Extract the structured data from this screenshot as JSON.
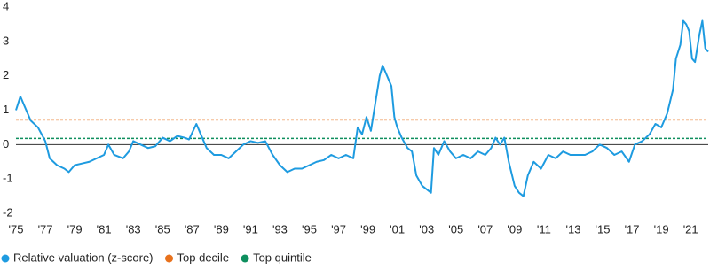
{
  "chart_data": {
    "type": "line",
    "xlim": [
      1975,
      2022.2
    ],
    "ylim": [
      -2,
      4
    ],
    "yticks": [
      -2,
      -1,
      0,
      1,
      2,
      3,
      4
    ],
    "xticks": [
      {
        "value": 1975,
        "label": "'75"
      },
      {
        "value": 1977,
        "label": "'77"
      },
      {
        "value": 1979,
        "label": "'79"
      },
      {
        "value": 1981,
        "label": "'81"
      },
      {
        "value": 1983,
        "label": "'83"
      },
      {
        "value": 1985,
        "label": "'85"
      },
      {
        "value": 1987,
        "label": "'87"
      },
      {
        "value": 1989,
        "label": "'89"
      },
      {
        "value": 1991,
        "label": "'91"
      },
      {
        "value": 1993,
        "label": "'93"
      },
      {
        "value": 1995,
        "label": "'95"
      },
      {
        "value": 1997,
        "label": "'97"
      },
      {
        "value": 1999,
        "label": "'99"
      },
      {
        "value": 2001,
        "label": "'01"
      },
      {
        "value": 2003,
        "label": "'03"
      },
      {
        "value": 2005,
        "label": "'05"
      },
      {
        "value": 2007,
        "label": "'07"
      },
      {
        "value": 2009,
        "label": "'09"
      },
      {
        "value": 2011,
        "label": "'11"
      },
      {
        "value": 2013,
        "label": "'13"
      },
      {
        "value": 2015,
        "label": "'15"
      },
      {
        "value": 2017,
        "label": "'17"
      },
      {
        "value": 2019,
        "label": "'19"
      },
      {
        "value": 2021,
        "label": "'21"
      }
    ],
    "x": [
      1975.0,
      1975.3,
      1975.6,
      1976.0,
      1976.5,
      1977.0,
      1977.3,
      1977.8,
      1978.3,
      1978.6,
      1979.0,
      1979.5,
      1980.0,
      1980.5,
      1981.0,
      1981.3,
      1981.7,
      1982.3,
      1982.7,
      1983.0,
      1983.5,
      1984.0,
      1984.5,
      1985.0,
      1985.5,
      1986.0,
      1986.5,
      1986.8,
      1987.3,
      1987.6,
      1988.0,
      1988.5,
      1989.0,
      1989.5,
      1990.0,
      1990.5,
      1991.0,
      1991.5,
      1992.0,
      1992.5,
      1993.0,
      1993.5,
      1994.0,
      1994.5,
      1995.0,
      1995.5,
      1996.0,
      1996.5,
      1997.0,
      1997.5,
      1998.0,
      1998.3,
      1998.6,
      1998.9,
      1999.2,
      1999.5,
      1999.8,
      2000.0,
      2000.3,
      2000.6,
      2000.8,
      2001.0,
      2001.3,
      2001.7,
      2002.0,
      2002.3,
      2002.7,
      2003.0,
      2003.3,
      2003.5,
      2003.8,
      2004.2,
      2004.6,
      2005.0,
      2005.5,
      2006.0,
      2006.5,
      2007.0,
      2007.4,
      2007.7,
      2008.0,
      2008.3,
      2008.6,
      2009.0,
      2009.3,
      2009.6,
      2009.9,
      2010.3,
      2010.8,
      2011.3,
      2011.8,
      2012.3,
      2012.8,
      2013.3,
      2013.8,
      2014.3,
      2014.8,
      2015.3,
      2015.8,
      2016.3,
      2016.8,
      2017.2,
      2017.7,
      2018.2,
      2018.6,
      2019.0,
      2019.4,
      2019.8,
      2020.0,
      2020.3,
      2020.5,
      2020.7,
      2020.9,
      2021.1,
      2021.3,
      2021.6,
      2021.8,
      2022.0,
      2022.2
    ],
    "series": [
      {
        "name": "Relative valuation (z-score)",
        "color": "#1e9be0",
        "values": [
          1.0,
          1.4,
          1.1,
          0.7,
          0.5,
          0.1,
          -0.4,
          -0.6,
          -0.7,
          -0.8,
          -0.6,
          -0.55,
          -0.5,
          -0.4,
          -0.3,
          0.0,
          -0.3,
          -0.4,
          -0.2,
          0.1,
          0.0,
          -0.1,
          -0.05,
          0.2,
          0.1,
          0.25,
          0.2,
          0.15,
          0.6,
          0.3,
          -0.1,
          -0.3,
          -0.3,
          -0.4,
          -0.2,
          0.0,
          0.1,
          0.05,
          0.1,
          -0.3,
          -0.6,
          -0.8,
          -0.7,
          -0.7,
          -0.6,
          -0.5,
          -0.45,
          -0.3,
          -0.4,
          -0.3,
          -0.4,
          0.5,
          0.3,
          0.8,
          0.4,
          1.2,
          2.0,
          2.3,
          2.0,
          1.7,
          0.8,
          0.5,
          0.2,
          -0.1,
          -0.2,
          -0.9,
          -1.2,
          -1.3,
          -1.4,
          -0.1,
          -0.3,
          0.1,
          -0.2,
          -0.4,
          -0.3,
          -0.4,
          -0.2,
          -0.3,
          -0.1,
          0.2,
          0.0,
          0.2,
          -0.5,
          -1.2,
          -1.4,
          -1.5,
          -0.9,
          -0.5,
          -0.7,
          -0.3,
          -0.4,
          -0.2,
          -0.3,
          -0.3,
          -0.3,
          -0.2,
          0.0,
          -0.1,
          -0.3,
          -0.2,
          -0.5,
          0.0,
          0.1,
          0.3,
          0.6,
          0.5,
          0.9,
          1.6,
          2.5,
          2.9,
          3.6,
          3.5,
          3.3,
          2.5,
          2.4,
          3.2,
          3.6,
          2.8,
          2.7
        ]
      }
    ],
    "reference_lines": [
      {
        "name": "Top decile",
        "value": 0.72,
        "color": "#e8711c"
      },
      {
        "name": "Top quintile",
        "value": 0.18,
        "color": "#0e8f5e"
      }
    ]
  }
}
